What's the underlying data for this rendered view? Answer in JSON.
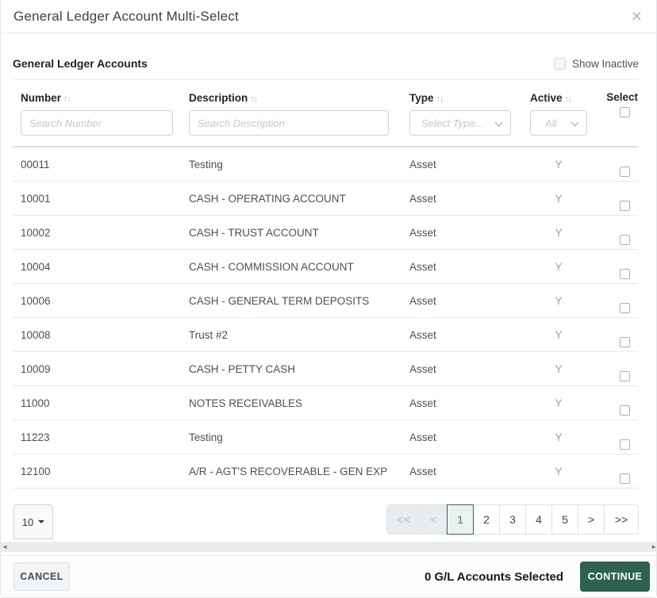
{
  "dialog": {
    "title": "General Ledger Account Multi-Select",
    "close_icon": "×"
  },
  "section": {
    "heading": "General Ledger Accounts",
    "show_inactive_label": "Show Inactive"
  },
  "table": {
    "columns": {
      "number": {
        "label": "Number",
        "sort_icon": "↑↓",
        "placeholder": "Search Number"
      },
      "description": {
        "label": "Description",
        "sort_icon": "↑↓",
        "placeholder": "Search Description"
      },
      "type": {
        "label": "Type",
        "sort_icon": "↑↓",
        "placeholder": "Select Type..."
      },
      "active": {
        "label": "Active",
        "sort_icon": "↑↓",
        "value": "All"
      },
      "select": {
        "label": "Select"
      }
    },
    "rows": [
      {
        "number": "00011",
        "description": "Testing",
        "type": "Asset",
        "active": "Y"
      },
      {
        "number": "10001",
        "description": "CASH - OPERATING ACCOUNT",
        "type": "Asset",
        "active": "Y"
      },
      {
        "number": "10002",
        "description": "CASH - TRUST ACCOUNT",
        "type": "Asset",
        "active": "Y"
      },
      {
        "number": "10004",
        "description": "CASH - COMMISSION ACCOUNT",
        "type": "Asset",
        "active": "Y"
      },
      {
        "number": "10006",
        "description": "CASH - GENERAL TERM DEPOSITS",
        "type": "Asset",
        "active": "Y"
      },
      {
        "number": "10008",
        "description": "Trust #2",
        "type": "Asset",
        "active": "Y"
      },
      {
        "number": "10009",
        "description": "CASH - PETTY CASH",
        "type": "Asset",
        "active": "Y"
      },
      {
        "number": "11000",
        "description": "NOTES RECEIVABLES",
        "type": "Asset",
        "active": "Y"
      },
      {
        "number": "11223",
        "description": "Testing",
        "type": "Asset",
        "active": "Y"
      },
      {
        "number": "12100",
        "description": "A/R - AGT'S RECOVERABLE - GEN EXP",
        "type": "Asset",
        "active": "Y"
      }
    ]
  },
  "pagination": {
    "page_size": "10",
    "items": [
      {
        "label": "<<",
        "state": "disabled"
      },
      {
        "label": "<",
        "state": "disabled"
      },
      {
        "label": "1",
        "state": "active"
      },
      {
        "label": "2",
        "state": "normal"
      },
      {
        "label": "3",
        "state": "normal"
      },
      {
        "label": "4",
        "state": "normal"
      },
      {
        "label": "5",
        "state": "normal"
      },
      {
        "label": ">",
        "state": "normal"
      },
      {
        "label": ">>",
        "state": "normal"
      }
    ]
  },
  "scrollbar": {
    "left_arrow": "◄",
    "right_arrow": "►"
  },
  "footer": {
    "cancel_label": "CANCEL",
    "selected_text": "0 G/L Accounts Selected",
    "continue_label": "CONTINUE"
  },
  "colors": {
    "continue_green": "#2d624e",
    "active_page_bg": "#e9f2ec",
    "active_page_border": "#2f6a50",
    "header_divider": "#dde1e4",
    "row_divider": "#e4e7ea"
  }
}
